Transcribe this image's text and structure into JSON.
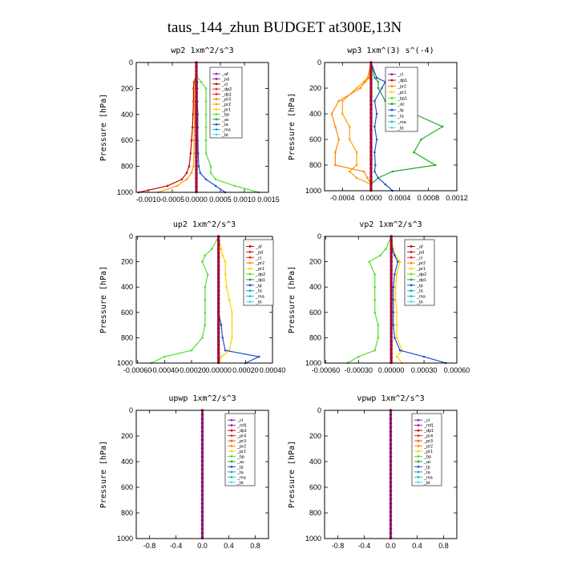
{
  "figure_title": "taus_144_zhun  BUDGET at300E,13N",
  "ylabel": "Pressure [hPa]",
  "y_ticks": [
    "0",
    "200",
    "400",
    "600",
    "800",
    "1000"
  ],
  "chart_data": [
    {
      "type": "line",
      "title": "wp2  1xm^2/s^3",
      "xlim": [
        -0.00125,
        0.0015
      ],
      "ylim": [
        1000,
        0
      ],
      "x_tick_labels": [
        "-0.0010",
        "-0.0005",
        "0.0000",
        "0.0005",
        "0.0010",
        "0.0015"
      ],
      "x_tick_values": [
        -0.001,
        -0.0005,
        0,
        0.0005,
        0.001,
        0.0015
      ],
      "legend": [
        "_af",
        "_pd",
        "_cl",
        "_dp2",
        "_dp1",
        "_pr3",
        "_pr2",
        "_pr1",
        "_bp",
        "_ac",
        "_ta",
        "_ma",
        "_bt"
      ],
      "colors": [
        "#7b2fbe",
        "#9c1fa0",
        "#cc0000",
        "#e03030",
        "#ee2222",
        "#ff8800",
        "#ffa000",
        "#ffd000",
        "#55dd33",
        "#22aa22",
        "#2050d0",
        "#20a0c0",
        "#40e0f0"
      ],
      "p": [
        0,
        100,
        150,
        200,
        300,
        400,
        500,
        600,
        700,
        800,
        850,
        900,
        950,
        1000
      ],
      "series": [
        {
          "values": [
            0,
            0,
            0,
            0,
            0,
            0,
            0,
            0,
            0,
            0,
            0,
            0,
            0,
            0
          ],
          "color": "#7b2fbe"
        },
        {
          "values": [
            0,
            0,
            0.0001,
            0.0002,
            0.0002,
            0.0002,
            0.0002,
            0.0002,
            0.0002,
            0.0003,
            0.0003,
            0.0004,
            0.0008,
            0.0013
          ],
          "color": "#55dd33"
        },
        {
          "values": [
            0,
            0,
            -5e-05,
            -6e-05,
            -6e-05,
            -7e-05,
            -8e-05,
            -0.0001,
            -0.00012,
            -0.00015,
            -0.0002,
            -0.0003,
            -0.0006,
            -0.0012
          ],
          "color": "#cc0000"
        },
        {
          "values": [
            0,
            0,
            -3e-05,
            -4e-05,
            -4e-05,
            -4e-05,
            -4e-05,
            -5e-05,
            -5e-05,
            -6e-05,
            -0.0001,
            -0.0002,
            -0.0004,
            -0.0008
          ],
          "color": "#ffa000"
        },
        {
          "values": [
            0,
            0,
            2e-05,
            2e-05,
            2e-05,
            3e-05,
            3e-05,
            3e-05,
            4e-05,
            5e-05,
            8e-05,
            0.0002,
            0.0004,
            0.0006
          ],
          "color": "#2050d0"
        }
      ]
    },
    {
      "type": "line",
      "title": "wp3  1xm^(3) s^(-4)",
      "xlim": [
        -0.00065,
        0.0012
      ],
      "ylim": [
        1000,
        0
      ],
      "x_tick_labels": [
        "-0.0004",
        "0.0000",
        "0.0004",
        "0.0008",
        "0.0012"
      ],
      "x_tick_values": [
        -0.0004,
        0,
        0.0004,
        0.0008,
        0.0012
      ],
      "legend": [
        "_cl",
        "_dp1",
        "_pr2",
        "_pr1",
        "_bp1",
        "_ac",
        "_tp",
        "_ta",
        "_ma",
        "_bt"
      ],
      "colors": [
        "#9c1fa0",
        "#cc0000",
        "#ff8800",
        "#ffd000",
        "#55dd33",
        "#22aa22",
        "#2050d0",
        "#20a0c0",
        "#20c0c0",
        "#40e0f0"
      ],
      "p": [
        0,
        120,
        150,
        200,
        300,
        400,
        500,
        600,
        700,
        800,
        850,
        900,
        950,
        1000
      ],
      "series": [
        {
          "values": [
            0,
            5e-05,
            0.0001,
            0.0001,
            0.0002,
            0.0006,
            0.001,
            0.0007,
            0.0006,
            0.0009,
            0.0003,
            0.0001,
            0,
            0
          ],
          "color": "#22aa22"
        },
        {
          "values": [
            0,
            -5e-05,
            -0.0001,
            -0.0002,
            -0.0004,
            -0.0004,
            -0.0003,
            -0.0003,
            -0.0002,
            -0.0002,
            -0.0003,
            -0.0002,
            0,
            0
          ],
          "color": "#ffa000"
        },
        {
          "values": [
            0,
            -3e-05,
            -8e-05,
            -0.00015,
            -0.00045,
            -0.00055,
            -0.0005,
            -0.00045,
            -0.0005,
            -0.0005,
            -0.0001,
            -5e-05,
            0,
            0
          ],
          "color": "#ff8800"
        },
        {
          "values": [
            0,
            8e-05,
            0.0002,
            0.00015,
            5e-05,
            8e-05,
            5e-05,
            8e-05,
            5e-05,
            6e-05,
            5e-05,
            0.0001,
            0.0002,
            0.0003
          ],
          "color": "#2050d0"
        },
        {
          "values": [
            0,
            0,
            0,
            0,
            0,
            0,
            0,
            0,
            0,
            0,
            0,
            0,
            0,
            0
          ],
          "color": "#cc0000"
        }
      ]
    },
    {
      "type": "line",
      "title": "up2  1xm^2/s^3",
      "xlim": [
        -0.00061,
        0.0004
      ],
      "ylim": [
        1000,
        0
      ],
      "x_tick_labels": [
        "-0.00060",
        "-0.00040",
        "-0.00020",
        "0.00000",
        "0.00020",
        "0.00040"
      ],
      "x_tick_values": [
        -0.0006,
        -0.0004,
        -0.0002,
        0,
        0.0002,
        0.0004
      ],
      "legend": [
        "_af",
        "_pd",
        "_cl",
        "_pr2",
        "_pr1",
        "_dp2",
        "_dp1",
        "_tp",
        "_ta",
        "_ma",
        "_bt"
      ],
      "colors": [
        "#cc0000",
        "#dd1010",
        "#ee2020",
        "#ff8800",
        "#ffd000",
        "#55dd33",
        "#22aa22",
        "#2050d0",
        "#20a0c0",
        "#20c0c0",
        "#40e0f0"
      ],
      "p": [
        0,
        100,
        150,
        200,
        300,
        400,
        500,
        600,
        700,
        800,
        900,
        950,
        1000
      ],
      "series": [
        {
          "values": [
            0,
            -5e-05,
            -0.0001,
            -0.00012,
            -8e-05,
            -0.0001,
            -0.0001,
            -0.0001,
            -0.0001,
            -0.00012,
            -0.0002,
            -0.0004,
            -0.0005
          ],
          "color": "#55dd33"
        },
        {
          "values": [
            0,
            2e-05,
            3e-05,
            5e-05,
            5e-05,
            6e-05,
            8e-05,
            0.0001,
            0.0001,
            0.0001,
            8e-05,
            2e-05,
            0
          ],
          "color": "#ffd000"
        },
        {
          "values": [
            0,
            0,
            0,
            0,
            0,
            0,
            0,
            0,
            2e-05,
            3e-05,
            5e-05,
            0.0003,
            0.0002
          ],
          "color": "#2050d0"
        },
        {
          "values": [
            0,
            0,
            0,
            0,
            0,
            0,
            0,
            0,
            0,
            0,
            0,
            0,
            0
          ],
          "color": "#cc0000"
        }
      ]
    },
    {
      "type": "line",
      "title": "vp2  1xm^2/s^3",
      "xlim": [
        -0.00061,
        0.0006
      ],
      "ylim": [
        1000,
        0
      ],
      "x_tick_labels": [
        "-0.00060",
        "-0.00030",
        "0.00000",
        "0.00030",
        "0.00060"
      ],
      "x_tick_values": [
        -0.0006,
        -0.0003,
        0,
        0.0003,
        0.0006
      ],
      "legend": [
        "_af",
        "_pd",
        "_cl",
        "_pr2",
        "_pr1",
        "_dp2",
        "_dp1",
        "_tp",
        "_ta",
        "_ma",
        "_bt"
      ],
      "colors": [
        "#cc0000",
        "#dd1010",
        "#ee2020",
        "#ff8800",
        "#ffd000",
        "#55dd33",
        "#22aa22",
        "#2050d0",
        "#20a0c0",
        "#20c0c0",
        "#40e0f0"
      ],
      "p": [
        0,
        100,
        150,
        200,
        300,
        400,
        500,
        600,
        700,
        800,
        900,
        950,
        1000
      ],
      "series": [
        {
          "values": [
            0,
            -5e-05,
            -0.0001,
            -0.0002,
            -0.00015,
            -0.00015,
            -0.00015,
            -0.00015,
            -0.00012,
            -0.00012,
            -0.00015,
            -0.0003,
            -0.0004
          ],
          "color": "#55dd33"
        },
        {
          "values": [
            0,
            2e-05,
            4e-05,
            8e-05,
            5e-05,
            4e-05,
            4e-05,
            5e-05,
            5e-05,
            5e-05,
            0.0001,
            5e-05,
            0.0001
          ],
          "color": "#ffd000"
        },
        {
          "values": [
            0,
            1e-05,
            3e-05,
            6e-05,
            3e-05,
            2e-05,
            2e-05,
            2e-05,
            2e-05,
            3e-05,
            8e-05,
            0.0003,
            0.0005
          ],
          "color": "#2050d0"
        },
        {
          "values": [
            0,
            0,
            0,
            0,
            0,
            0,
            0,
            0,
            0,
            0,
            0,
            0,
            0
          ],
          "color": "#cc0000"
        }
      ]
    },
    {
      "type": "line",
      "title": "upwp  1xm^2/s^3",
      "xlim": [
        -1.0,
        1.0
      ],
      "ylim": [
        1000,
        0
      ],
      "x_tick_labels": [
        "-0.8",
        "-0.4",
        "0.0",
        "0.4",
        "0.8"
      ],
      "x_tick_values": [
        -0.8,
        -0.4,
        0,
        0.4,
        0.8
      ],
      "legend": [
        "_cl",
        "_mf1",
        "_dp1",
        "_pr4",
        "_pr3",
        "_pr2",
        "_pr1",
        "_bp",
        "_ac",
        "_tp",
        "_ta",
        "_ma",
        "_bt"
      ],
      "colors": [
        "#7b2fbe",
        "#9c1fa0",
        "#cc0000",
        "#ee2222",
        "#ff5500",
        "#ff8800",
        "#ffd000",
        "#55dd33",
        "#22aa22",
        "#2050d0",
        "#20a0c0",
        "#20c0c0",
        "#40e0f0"
      ],
      "p": [
        0,
        100,
        200,
        300,
        400,
        500,
        600,
        700,
        800,
        900,
        1000
      ],
      "series": [
        {
          "values": [
            0,
            0,
            0,
            0,
            0,
            0,
            0,
            0,
            0,
            0,
            0
          ],
          "color": "#7b2fbe"
        }
      ]
    },
    {
      "type": "line",
      "title": "vpwp  1xm^2/s^3",
      "xlim": [
        -1.0,
        1.0
      ],
      "ylim": [
        1000,
        0
      ],
      "x_tick_labels": [
        "-0.8",
        "-0.4",
        "0.0",
        "0.4",
        "0.8"
      ],
      "x_tick_values": [
        -0.8,
        -0.4,
        0,
        0.4,
        0.8
      ],
      "legend": [
        "_cl",
        "_mf1",
        "_dp1",
        "_pr4",
        "_pr3",
        "_pr2",
        "_pr1",
        "_bp",
        "_ac",
        "_tp",
        "_ta",
        "_ma",
        "_bt"
      ],
      "colors": [
        "#7b2fbe",
        "#9c1fa0",
        "#cc0000",
        "#ee2222",
        "#ff5500",
        "#ff8800",
        "#ffd000",
        "#55dd33",
        "#22aa22",
        "#2050d0",
        "#20a0c0",
        "#20c0c0",
        "#40e0f0"
      ],
      "p": [
        0,
        100,
        200,
        300,
        400,
        500,
        600,
        700,
        800,
        900,
        1000
      ],
      "series": [
        {
          "values": [
            0,
            0,
            0,
            0,
            0,
            0,
            0,
            0,
            0,
            0,
            0
          ],
          "color": "#7b2fbe"
        }
      ]
    }
  ]
}
